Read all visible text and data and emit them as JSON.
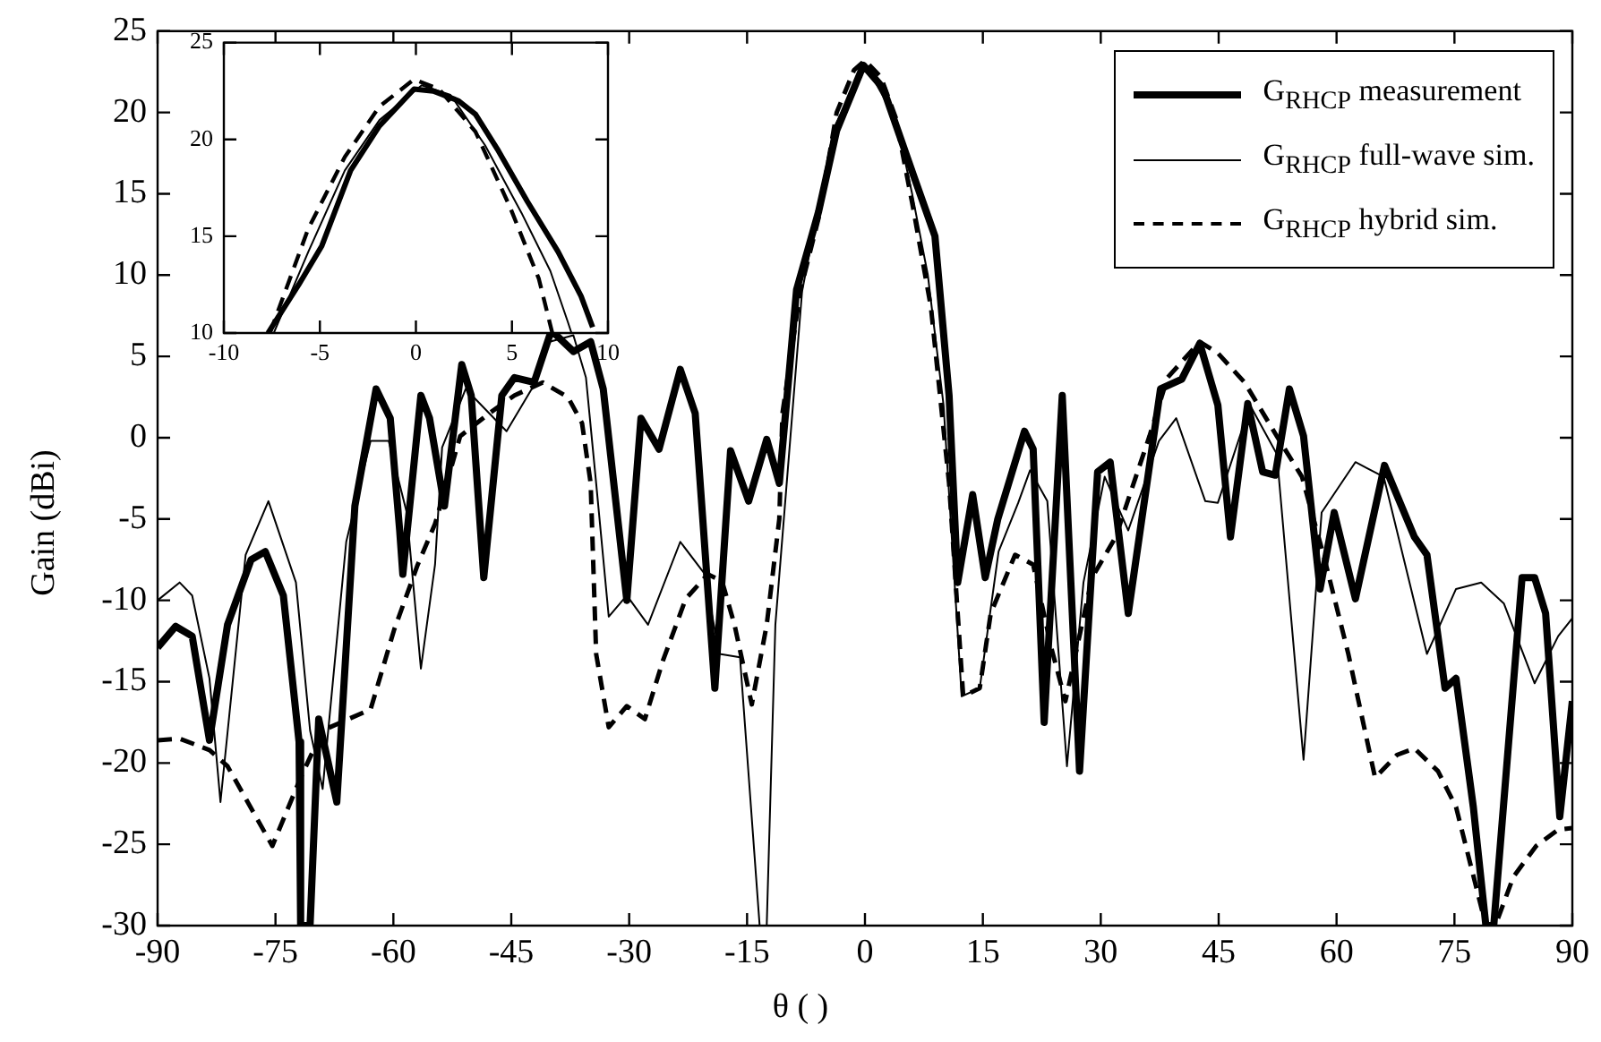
{
  "chart_data": [
    {
      "type": "line",
      "xlabel": "θ ( )",
      "ylabel": "Gain (dBi)",
      "xlim": [
        -90,
        90
      ],
      "xticks": [
        -90,
        -75,
        -60,
        -45,
        -30,
        -15,
        0,
        15,
        30,
        45,
        60,
        75,
        90
      ],
      "ylim": [
        -30,
        25
      ],
      "yticks": [
        -30,
        -25,
        -20,
        -15,
        -10,
        -5,
        0,
        5,
        10,
        15,
        20,
        25
      ],
      "grid": false,
      "legend": "top right",
      "marker": "none",
      "series": [
        {
          "name": "G$_{RHCP}$ measurement",
          "color": "#000000",
          "line_style": "solid",
          "x": [
            -90,
            -87.7,
            -85.6,
            -83.4,
            -81.1,
            -78.1,
            -76.3,
            -74,
            -72,
            -71.8,
            -70.6,
            -69.5,
            -67.2,
            -64.9,
            -62.2,
            -60.4,
            -59.2,
            -58.8,
            -56.5,
            -55.4,
            -53.5,
            -51.3,
            -50.1,
            -48.5,
            -46.2,
            -44.6,
            -42.1,
            -39.9,
            -37.1,
            -34.9,
            -33.3,
            -30.3,
            -28.5,
            -26.2,
            -23.5,
            -21.6,
            -19.1,
            -17.1,
            -14.8,
            -12.5,
            -10.9,
            -8.7,
            -5.9,
            -3.6,
            -0.2,
            2.3,
            6.2,
            8.9,
            10.7,
            11.8,
            13.7,
            15.3,
            16.9,
            20.3,
            21.4,
            22.8,
            25.1,
            27.3,
            29.6,
            31.2,
            33.5,
            37.6,
            40.3,
            42.6,
            44.9,
            46.5,
            48.7,
            50.6,
            52.2,
            54,
            55.8,
            57.9,
            59.7,
            62.4,
            66.1,
            69.9,
            71.5,
            73.8,
            75.2,
            77.4,
            79,
            80,
            83.6,
            85.2,
            86.6,
            88.4,
            90
          ],
          "values": [
            -12.9,
            -11.6,
            -12.2,
            -18.6,
            -11.5,
            -7.5,
            -7,
            -9.7,
            -18.7,
            -30,
            -30,
            -17.3,
            -22.4,
            -4.2,
            3,
            1.2,
            -5.7,
            -8.4,
            2.6,
            1.2,
            -4.2,
            4.5,
            2.6,
            -8.6,
            2.6,
            3.7,
            3.4,
            6.6,
            5.3,
            5.9,
            3,
            -10,
            1.2,
            -0.7,
            4.2,
            1.5,
            -15.4,
            -0.8,
            -3.9,
            -0.1,
            -2.8,
            9.1,
            13.9,
            18.9,
            22.9,
            21.5,
            16.1,
            12.4,
            2.6,
            -8.9,
            -3.5,
            -8.6,
            -5,
            0.4,
            -0.7,
            -17.5,
            2.6,
            -20.5,
            -2.1,
            -1.5,
            -10.8,
            3,
            3.6,
            5.8,
            2,
            -6.1,
            2.1,
            -2.1,
            -2.3,
            3,
            0.1,
            -9.3,
            -4.6,
            -9.9,
            -1.7,
            -6.1,
            -7.2,
            -15.4,
            -14.8,
            -22.7,
            -30,
            -30,
            -8.6,
            -8.6,
            -10.8,
            -23.3,
            -16.2
          ]
        },
        {
          "name": "G$_{RHCP}$ full-wave sim.",
          "color": "#000000",
          "line_style": "solid",
          "x": [
            -90,
            -87.2,
            -85.6,
            -83.4,
            -82,
            -78.8,
            -75.9,
            -72.4,
            -70.6,
            -69,
            -66,
            -62.9,
            -60.6,
            -58.3,
            -56.5,
            -54.7,
            -53.8,
            -50.8,
            -47.8,
            -45.6,
            -42.4,
            -40.1,
            -37.1,
            -35.5,
            -34.2,
            -32.6,
            -30.3,
            -27.6,
            -23.5,
            -20.5,
            -18.5,
            -15.9,
            -13.4,
            -12.5,
            -11.4,
            -8,
            -4,
            0,
            4,
            6,
            8,
            10,
            12.3,
            14.6,
            17,
            19.5,
            21,
            23.2,
            25.7,
            27.8,
            30.5,
            33.5,
            37.4,
            39.6,
            43.3,
            44.9,
            49,
            52.4,
            55.8,
            58.1,
            62.4,
            66,
            71.5,
            75.2,
            78.4,
            81.3,
            85.2,
            88.2,
            90
          ],
          "values": [
            -10,
            -8.9,
            -9.7,
            -14.8,
            -22.4,
            -7.2,
            -3.9,
            -8.9,
            -18,
            -21.6,
            -6.4,
            -0.2,
            -0.2,
            -4.6,
            -14.2,
            -7.8,
            -0.6,
            3,
            1.5,
            0.4,
            3,
            5.9,
            6.3,
            3.7,
            -2.8,
            -11,
            -9.7,
            -11.5,
            -6.4,
            -8.3,
            -13.3,
            -13.5,
            -30,
            -30,
            -11.5,
            9,
            19,
            23,
            19.5,
            15,
            10,
            2,
            -15.9,
            -15.4,
            -7,
            -4,
            -2,
            -3.9,
            -20.2,
            -8.9,
            -2.4,
            -5.7,
            -0.2,
            1.2,
            -3.9,
            -4,
            2,
            -1,
            -19.8,
            -4.6,
            -1.5,
            -2.4,
            -13.3,
            -9.3,
            -8.9,
            -10.2,
            -15.1,
            -12.2,
            -11.1
          ]
        },
        {
          "name": "G$_{RHCP}$ hybrid sim.",
          "color": "#000000",
          "line_style": "dashed",
          "x": [
            -90,
            -87.2,
            -83.4,
            -81.1,
            -75.4,
            -71.8,
            -69,
            -62.9,
            -59.9,
            -56.9,
            -54.7,
            -51.5,
            -47.8,
            -44.6,
            -41,
            -37.8,
            -36,
            -34.9,
            -34.2,
            -32.6,
            -30.3,
            -28,
            -25.7,
            -22.8,
            -20,
            -18.2,
            -16.6,
            -14.4,
            -12.5,
            -10.9,
            -10.5,
            -8.2,
            -5.9,
            -3.6,
            -1.4,
            0,
            2,
            3.9,
            6.1,
            8.4,
            10.7,
            12.5,
            14.6,
            16,
            19.1,
            21.4,
            23.7,
            25.5,
            28.9,
            31.9,
            36.2,
            38.5,
            42.6,
            44.9,
            48.3,
            52.4,
            55.6,
            58.5,
            61.5,
            64.9,
            67.7,
            69.9,
            72.9,
            75.2,
            79,
            80.2,
            82.5,
            85.4,
            88.2,
            90
          ],
          "values": [
            -18.6,
            -18.5,
            -19.2,
            -20.2,
            -25.1,
            -20.9,
            -18,
            -16.7,
            -11.8,
            -7.8,
            -5.3,
            0.1,
            1.5,
            2.6,
            3.4,
            2.5,
            0.9,
            -2.8,
            -13.3,
            -17.8,
            -16.5,
            -17.3,
            -13.7,
            -9.9,
            -8.4,
            -8.8,
            -11.5,
            -16.4,
            -11.5,
            -5,
            1.5,
            9.1,
            13.5,
            20,
            22.6,
            23.2,
            22.2,
            19.7,
            14.2,
            8,
            -2.8,
            -15.9,
            -15.4,
            -10.8,
            -7.2,
            -7.8,
            -12.9,
            -16.2,
            -8.6,
            -6.1,
            0.1,
            3.7,
            5.9,
            5.2,
            3.4,
            0.1,
            -2.4,
            -7.5,
            -13.3,
            -20.9,
            -19.5,
            -19.1,
            -20.5,
            -22.7,
            -30,
            -30,
            -27,
            -25.1,
            -24.1,
            -24
          ]
        }
      ]
    },
    {
      "type": "line",
      "xlim": [
        -10,
        10
      ],
      "xticks": [
        -10,
        -5,
        0,
        5,
        10
      ],
      "ylim": [
        10,
        25
      ],
      "yticks": [
        10,
        15,
        20,
        25
      ],
      "grid": false,
      "marker": "none",
      "series": [
        {
          "color": "#000000",
          "line_style": "solid",
          "x": [
            -7.7,
            -6.1,
            -4.9,
            -3.4,
            -1.9,
            -0.1,
            0.9,
            2.2,
            3.1,
            4.3,
            5.8,
            7.4,
            8.6,
            9.2
          ],
          "values": [
            10,
            12.5,
            14.5,
            18.4,
            20.7,
            22.6,
            22.5,
            22,
            21.3,
            19.4,
            16.8,
            14.2,
            11.9,
            10.3
          ]
        },
        {
          "color": "#000000",
          "line_style": "solid",
          "x": [
            -7.4,
            -5.6,
            -3.7,
            -1.9,
            0.3,
            1.8,
            3.6,
            5.5,
            7,
            7.9,
            8.1
          ],
          "values": [
            10,
            14.2,
            18.4,
            21,
            22.8,
            22.3,
            19.7,
            16.2,
            13.2,
            10.6,
            10
          ]
        },
        {
          "color": "#000000",
          "line_style": "dashed",
          "x": [
            -7.6,
            -5.6,
            -3.7,
            -1.9,
            -0.1,
            1.2,
            3.1,
            4.9,
            6.4,
            7.1
          ],
          "values": [
            10,
            15.4,
            19.1,
            21.7,
            23.1,
            22.6,
            20.4,
            16.5,
            12.8,
            10
          ]
        }
      ]
    }
  ]
}
